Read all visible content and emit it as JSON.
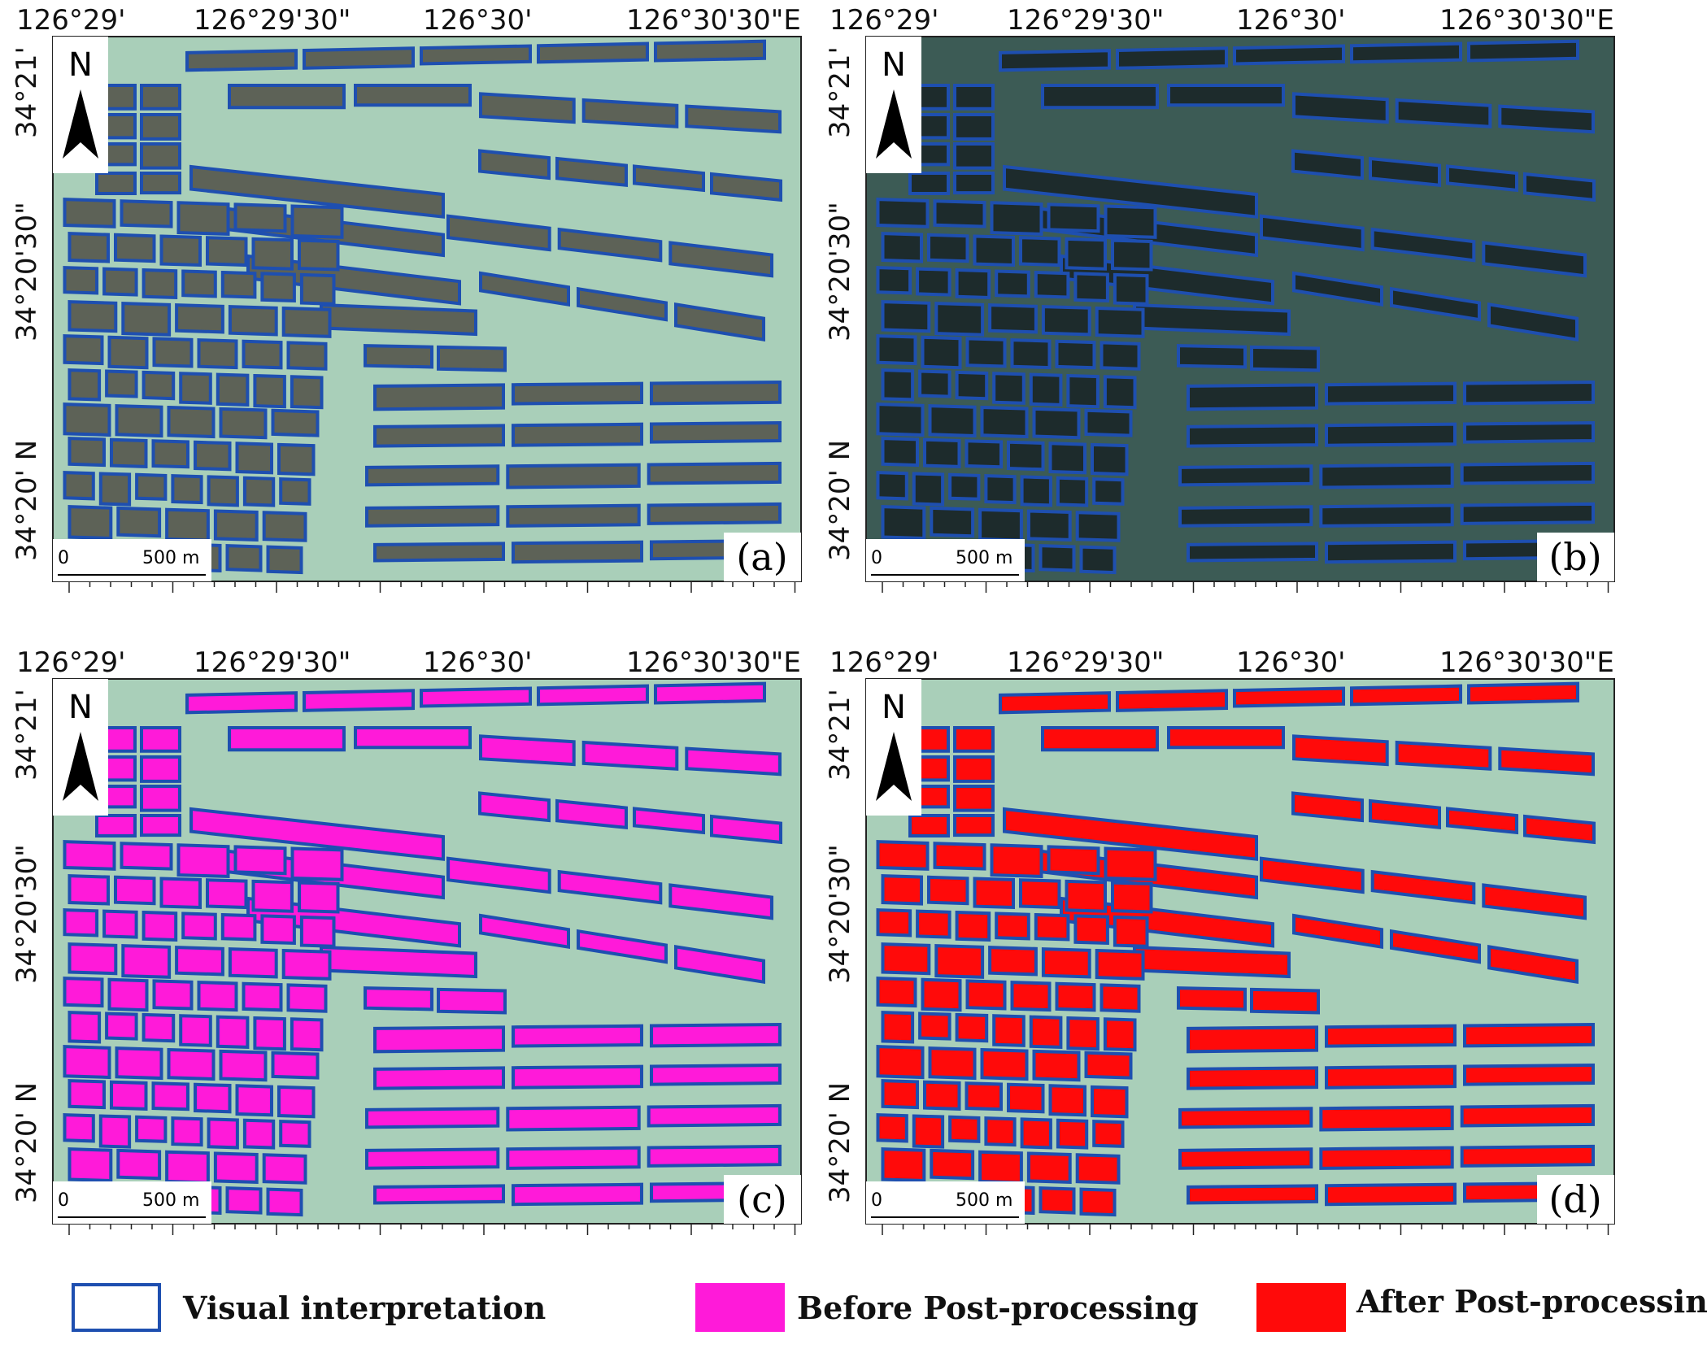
{
  "figure": {
    "x_ticks": [
      "126°29'",
      "126°29'30\"",
      "126°30'",
      "126°30'30\"E"
    ],
    "y_ticks": [
      "34°21'",
      "34°20'30\"",
      "34°20' N"
    ],
    "north_label": "N",
    "scale_zero": "0",
    "scale_label": "500 m",
    "panels": [
      {
        "id": "a",
        "label": "(a)",
        "style": "bright",
        "fill": null
      },
      {
        "id": "b",
        "label": "(b)",
        "style": "dark",
        "fill": null
      },
      {
        "id": "c",
        "label": "(c)",
        "style": "bright",
        "fill": "#ff1ad9"
      },
      {
        "id": "d",
        "label": "(d)",
        "style": "bright",
        "fill": "#ff0a0a"
      }
    ],
    "colors": {
      "outline": "#1e4fb0",
      "water_bright": "#a9cfb9",
      "water_dark": "#3c5b55",
      "farm_bright": "#5d6257",
      "farm_dark": "#1d2b2c",
      "before": "#ff1ad9",
      "after": "#ff0a0a"
    }
  },
  "legend": {
    "items": [
      {
        "label": "Visual interpretation",
        "kind": "outline",
        "color": "#1e4fb0"
      },
      {
        "label": "Before Post-processing",
        "kind": "fill",
        "color": "#ff1ad9"
      },
      {
        "label": "After Post-processing",
        "kind": "fill",
        "color": "#ff0a0a"
      }
    ]
  }
}
